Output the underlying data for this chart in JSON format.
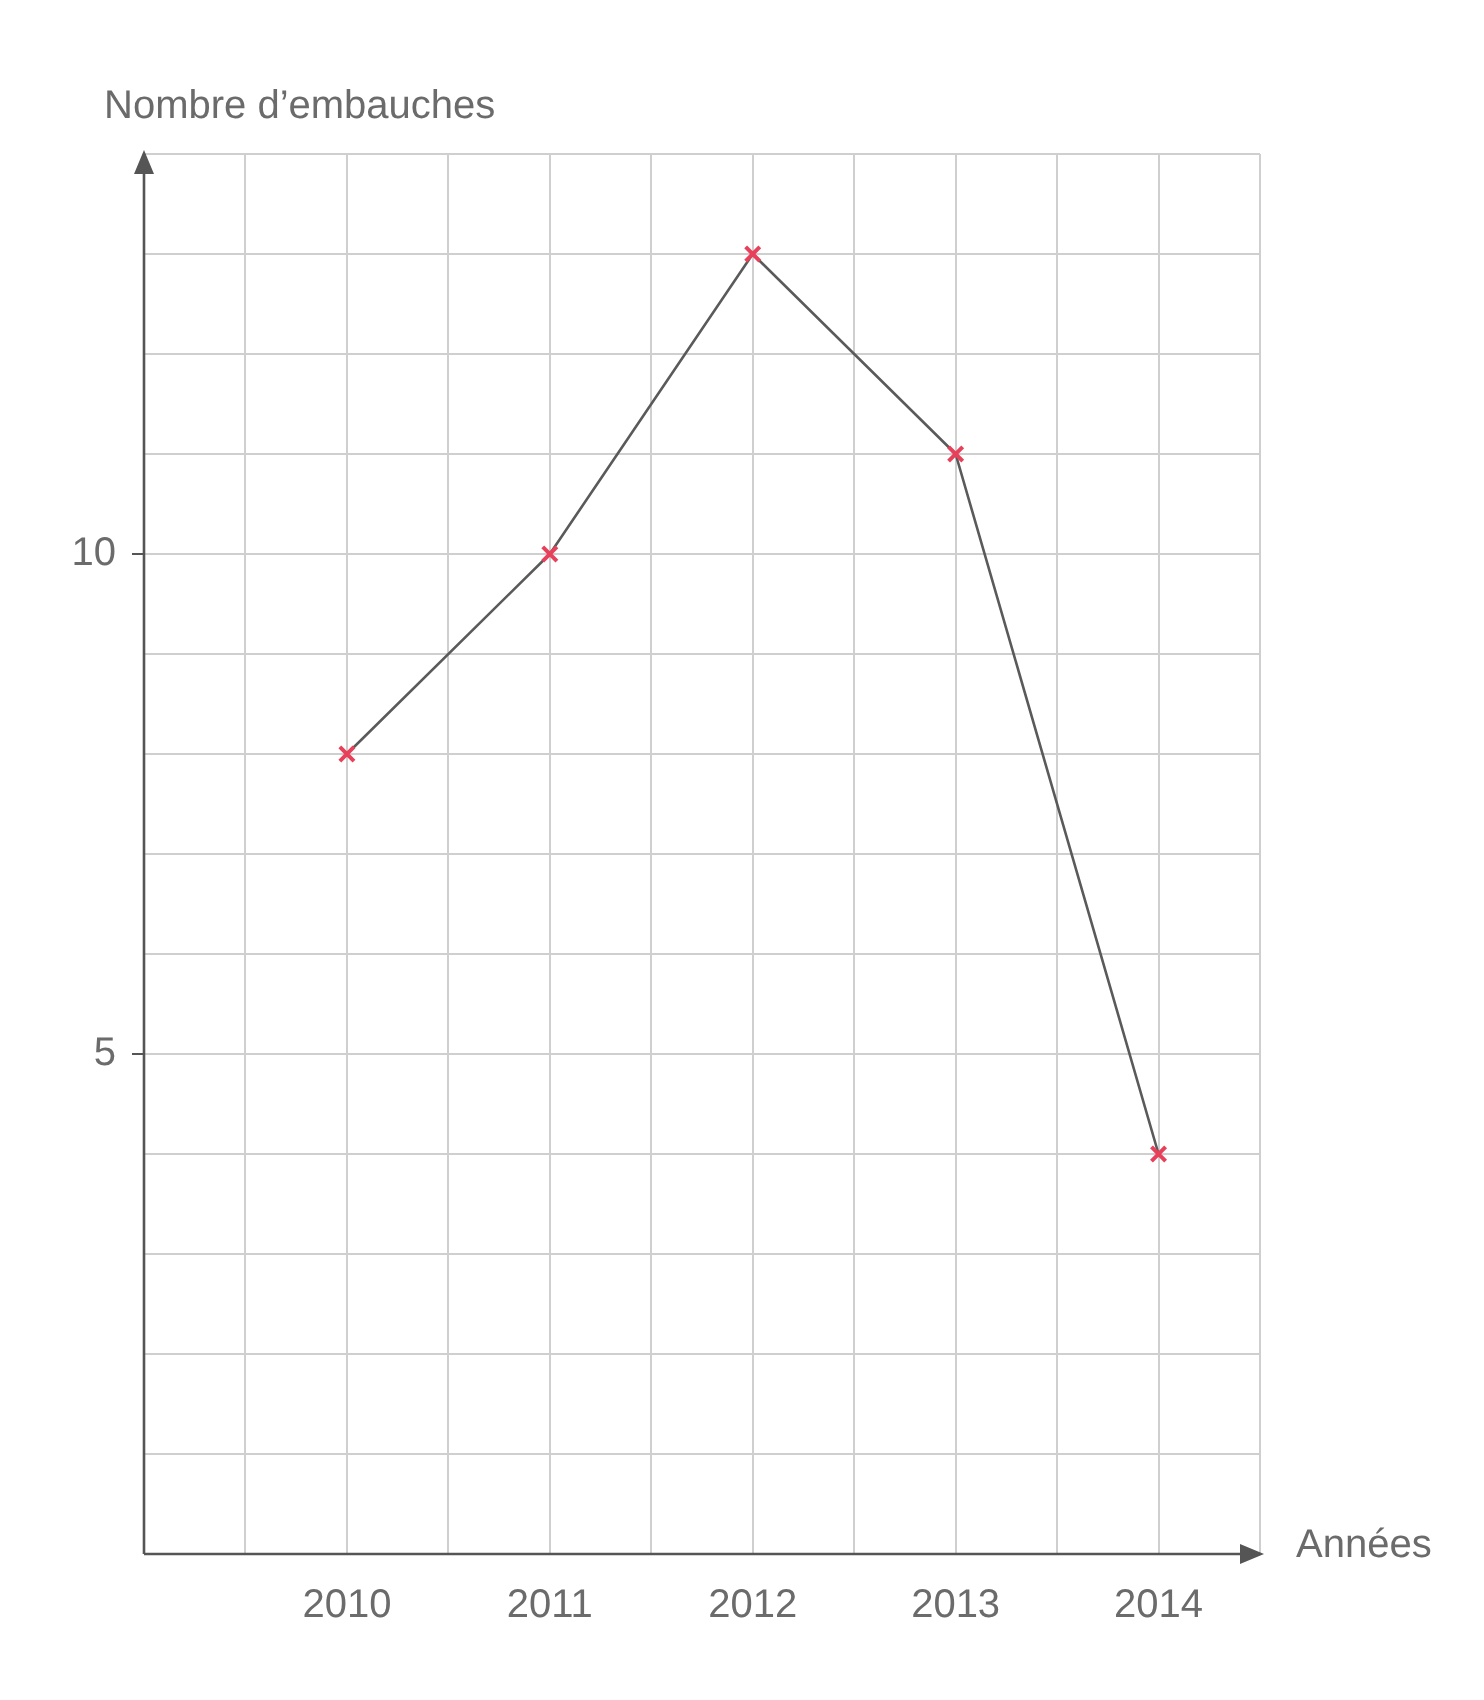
{
  "chart_data": {
    "type": "line",
    "xlabel": "Années",
    "ylabel": "Nombre d’embauches",
    "x": [
      2010,
      2011,
      2012,
      2013,
      2014
    ],
    "series": [
      {
        "color": "#5a5a5a",
        "colors": [
          "#e8405a",
          "#e8405a",
          "#e8405a",
          "#e8405a",
          "#e8405a"
        ],
        "values": [
          8,
          10,
          13,
          11,
          4
        ]
      }
    ],
    "xlim": [
      2009,
      2014.5
    ],
    "xticks": [
      {
        "value": 2009.5,
        "label": null
      },
      2010,
      {
        "value": 2010.5,
        "label": null
      },
      2011,
      {
        "value": 2011.5,
        "label": null
      },
      2012,
      {
        "value": 2012.5,
        "label": null
      },
      2013,
      {
        "value": 2013.5,
        "label": null
      },
      2014,
      {
        "value": 2014.5,
        "label": null
      }
    ],
    "ylim": [
      0,
      14
    ],
    "yticks": [
      {
        "value": 1,
        "label": null
      },
      {
        "value": 2,
        "label": null
      },
      {
        "value": 3,
        "label": null
      },
      {
        "value": 4,
        "label": null
      },
      5,
      {
        "value": 6,
        "label": null
      },
      {
        "value": 7,
        "label": null
      },
      {
        "value": 8,
        "label": null
      },
      {
        "value": 9,
        "label": null
      },
      10,
      {
        "value": 11,
        "label": null
      },
      {
        "value": 12,
        "label": null
      },
      {
        "value": 13,
        "label": null
      },
      {
        "value": 14,
        "label": null
      }
    ],
    "grid": true,
    "marker": "cross",
    "line_style": "solid",
    "legend": false
  }
}
